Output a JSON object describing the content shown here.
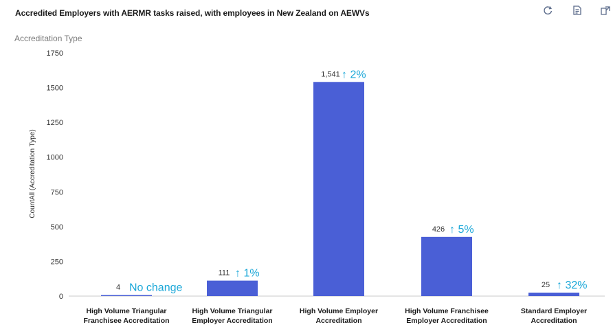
{
  "header": {
    "title": "Accredited Employers with AERMR tasks raised, with employees in New Zealand on AEWVs",
    "icons": [
      "refresh-icon",
      "export-icon",
      "expand-icon"
    ]
  },
  "colors": {
    "bar": "#4a5fd6",
    "delta": "#1aa7d8",
    "axis": "#c8c8c8"
  },
  "chart_data": {
    "type": "bar",
    "title": "Accreditation Type",
    "ylabel": "CountAll (Accreditation Type)",
    "xlabel": "",
    "ylim": [
      0,
      1750
    ],
    "yticks": [
      0,
      250,
      500,
      750,
      1000,
      1250,
      1500,
      1750
    ],
    "categories": [
      [
        "High Volume Triangular",
        "Franchisee Accreditation"
      ],
      [
        "High Volume Triangular",
        "Employer Accreditation"
      ],
      [
        "High Volume Employer",
        "Accreditation"
      ],
      [
        "High Volume Franchisee",
        "Employer Accreditation"
      ],
      [
        "Standard Employer",
        "Accreditation"
      ]
    ],
    "values": [
      4,
      111,
      1541,
      426,
      25
    ],
    "value_labels": [
      "4",
      "111",
      "1,541",
      "426",
      "25"
    ],
    "changes": [
      "No change",
      "↑ 1%",
      "↑ 2%",
      "↑ 5%",
      "↑ 32%"
    ],
    "grid": false,
    "legend": "none"
  }
}
